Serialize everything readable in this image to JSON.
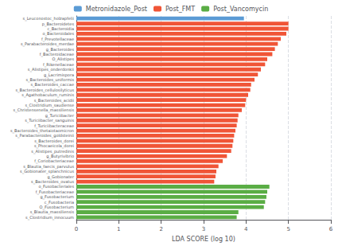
{
  "chart_data": {
    "type": "bar",
    "orientation": "horizontal",
    "xlabel": "LDA SCORE (log 10)",
    "xlim": [
      0,
      6
    ],
    "xticks": [
      0,
      1,
      2,
      3,
      4,
      5,
      6
    ],
    "grid": true,
    "legend": "top",
    "categories": [
      "s_Leuconostoc_holzapfelii",
      "p_Bacteroidetes",
      "c_Bacteroidia",
      "o_Bacteroidales",
      "f_Prevotellaceae",
      "s_Parabacteroides_merdae",
      "g_Bacteroides",
      "f_Bacteroidaceae",
      "O_Alistipes",
      "f_Rikenellaceae",
      "s_Alistipes_onderdonkii",
      "g_Lacrimispora",
      "s_Bacteroides_uniformis",
      "s_Bacteroides_caccae",
      "s_Bacteroides_cellulosilyticus",
      "s_Agathobaculum_ruminis",
      "s_Bacteroides_acidii",
      "s_Clostridium_saudiense",
      "s_Christensenella_massiliensis",
      "g_Turiciibacter",
      "s_Turiciibacter_sanguinis",
      "f_Turiciibacteraceae",
      "s_Bacteroides_thetaiotaomicron",
      "s_Parabacteroides_goldsteinii",
      "s_Bacteroides_dorei",
      "s_Phocaeicola_dorei",
      "s_Alistipes_putredinis",
      "g_Butyrivibrio",
      "f_Coriobacteriaceae",
      "s_Blautia_faecis_parvulus",
      "s_Gobionater_splanchnicus",
      "g_Gobionater",
      "s_Bacteroides_ovatus",
      "o_Fusobacteriales",
      "f_Fusobacteriaceae",
      "g_Fusobacterium",
      "c_Fusobacteria",
      "O_Fusobacterium",
      "s_Blautia_massiliensis",
      "s_Clostridium_innocuum"
    ],
    "series": [
      {
        "name": "Metronidazole_Post",
        "color": "#5b9bd5",
        "values": [
          3.95,
          null,
          null,
          null,
          null,
          null,
          null,
          null,
          null,
          null,
          null,
          null,
          null,
          null,
          null,
          null,
          null,
          null,
          null,
          null,
          null,
          null,
          null,
          null,
          null,
          null,
          null,
          null,
          null,
          null,
          null,
          null,
          null,
          null,
          null,
          null,
          null,
          null,
          null,
          null
        ]
      },
      {
        "name": "Post_FMT",
        "color": "#f05537",
        "values": [
          null,
          5.0,
          5.0,
          4.95,
          4.82,
          4.75,
          4.68,
          4.62,
          4.5,
          4.45,
          4.35,
          4.28,
          4.2,
          4.12,
          4.1,
          4.05,
          4.0,
          3.98,
          3.9,
          3.82,
          3.8,
          3.78,
          3.75,
          3.72,
          3.7,
          3.68,
          3.65,
          3.55,
          3.45,
          3.35,
          3.3,
          3.28,
          3.25,
          null,
          null,
          null,
          null,
          null,
          null,
          null
        ]
      },
      {
        "name": "Post_Vancomycin",
        "color": "#5aad45",
        "values": [
          null,
          null,
          null,
          null,
          null,
          null,
          null,
          null,
          null,
          null,
          null,
          null,
          null,
          null,
          null,
          null,
          null,
          null,
          null,
          null,
          null,
          null,
          null,
          null,
          null,
          null,
          null,
          null,
          null,
          null,
          null,
          null,
          null,
          4.55,
          4.5,
          4.48,
          4.45,
          4.42,
          3.82,
          3.78
        ]
      }
    ]
  }
}
